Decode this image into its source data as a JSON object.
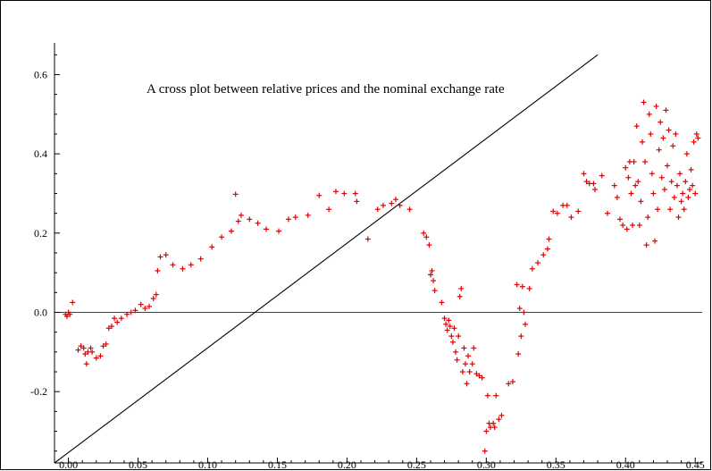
{
  "chart_data": {
    "type": "scatter",
    "title": "A cross plot between relative prices and the nominal exchange rate",
    "xlabel": "",
    "ylabel": "",
    "xlim": [
      -0.01,
      0.455
    ],
    "ylim": [
      -0.38,
      0.68
    ],
    "x_ticks": [
      0.0,
      0.05,
      0.1,
      0.15,
      0.2,
      0.25,
      0.3,
      0.35,
      0.4,
      0.45
    ],
    "x_tick_labels": [
      "0.00",
      "0.05",
      "0.10",
      "0.15",
      "0.20",
      "0.25",
      "0.30",
      "0.35",
      "0.40",
      "0.45"
    ],
    "y_ticks": [
      -0.2,
      0.0,
      0.2,
      0.4,
      0.6
    ],
    "y_tick_labels": [
      "-0.2",
      "0.0",
      "0.2",
      "0.4",
      "0.6"
    ],
    "grid": false,
    "reference_lines": [
      {
        "kind": "horizontal",
        "y": 0.0
      },
      {
        "kind": "diagonal",
        "from": [
          -0.01,
          -0.38
        ],
        "to": [
          0.38,
          0.65
        ]
      }
    ],
    "marker": "+",
    "marker_color": "#e00000",
    "points": [
      [
        -0.002,
        -0.005
      ],
      [
        -0.001,
        -0.01
      ],
      [
        0.0,
        0.0
      ],
      [
        0.001,
        -0.005
      ],
      [
        0.003,
        0.025
      ],
      [
        0.007,
        -0.095
      ],
      [
        0.009,
        -0.085
      ],
      [
        0.011,
        -0.09
      ],
      [
        0.012,
        -0.105
      ],
      [
        0.013,
        -0.13
      ],
      [
        0.014,
        -0.1
      ],
      [
        0.016,
        -0.09
      ],
      [
        0.017,
        -0.1
      ],
      [
        0.02,
        -0.115
      ],
      [
        0.023,
        -0.11
      ],
      [
        0.025,
        -0.085
      ],
      [
        0.027,
        -0.08
      ],
      [
        0.029,
        -0.04
      ],
      [
        0.031,
        -0.035
      ],
      [
        0.033,
        -0.015
      ],
      [
        0.035,
        -0.025
      ],
      [
        0.038,
        -0.015
      ],
      [
        0.042,
        -0.005
      ],
      [
        0.045,
        0.0
      ],
      [
        0.048,
        0.005
      ],
      [
        0.052,
        0.02
      ],
      [
        0.055,
        0.01
      ],
      [
        0.058,
        0.015
      ],
      [
        0.061,
        0.035
      ],
      [
        0.063,
        0.045
      ],
      [
        0.064,
        0.105
      ],
      [
        0.066,
        0.14
      ],
      [
        0.07,
        0.145
      ],
      [
        0.075,
        0.12
      ],
      [
        0.082,
        0.11
      ],
      [
        0.088,
        0.12
      ],
      [
        0.095,
        0.135
      ],
      [
        0.103,
        0.165
      ],
      [
        0.11,
        0.19
      ],
      [
        0.117,
        0.205
      ],
      [
        0.12,
        0.298
      ],
      [
        0.122,
        0.23
      ],
      [
        0.124,
        0.245
      ],
      [
        0.13,
        0.235
      ],
      [
        0.136,
        0.225
      ],
      [
        0.142,
        0.21
      ],
      [
        0.151,
        0.205
      ],
      [
        0.158,
        0.235
      ],
      [
        0.163,
        0.24
      ],
      [
        0.172,
        0.245
      ],
      [
        0.18,
        0.295
      ],
      [
        0.187,
        0.26
      ],
      [
        0.192,
        0.305
      ],
      [
        0.198,
        0.3
      ],
      [
        0.206,
        0.3
      ],
      [
        0.207,
        0.28
      ],
      [
        0.215,
        0.185
      ],
      [
        0.222,
        0.26
      ],
      [
        0.226,
        0.27
      ],
      [
        0.232,
        0.275
      ],
      [
        0.235,
        0.285
      ],
      [
        0.238,
        0.27
      ],
      [
        0.245,
        0.26
      ],
      [
        0.255,
        0.2
      ],
      [
        0.257,
        0.19
      ],
      [
        0.259,
        0.17
      ],
      [
        0.26,
        0.095
      ],
      [
        0.261,
        0.105
      ],
      [
        0.262,
        0.08
      ],
      [
        0.263,
        0.055
      ],
      [
        0.268,
        0.025
      ],
      [
        0.27,
        -0.015
      ],
      [
        0.271,
        -0.03
      ],
      [
        0.272,
        -0.045
      ],
      [
        0.273,
        -0.02
      ],
      [
        0.274,
        -0.035
      ],
      [
        0.275,
        -0.06
      ],
      [
        0.276,
        -0.075
      ],
      [
        0.277,
        -0.04
      ],
      [
        0.278,
        -0.1
      ],
      [
        0.279,
        -0.12
      ],
      [
        0.28,
        -0.06
      ],
      [
        0.281,
        0.04
      ],
      [
        0.282,
        0.06
      ],
      [
        0.283,
        -0.15
      ],
      [
        0.284,
        -0.09
      ],
      [
        0.285,
        -0.13
      ],
      [
        0.286,
        -0.18
      ],
      [
        0.287,
        -0.11
      ],
      [
        0.288,
        -0.15
      ],
      [
        0.29,
        -0.13
      ],
      [
        0.291,
        -0.09
      ],
      [
        0.293,
        -0.155
      ],
      [
        0.295,
        -0.16
      ],
      [
        0.297,
        -0.165
      ],
      [
        0.299,
        -0.35
      ],
      [
        0.3,
        -0.3
      ],
      [
        0.301,
        -0.21
      ],
      [
        0.302,
        -0.28
      ],
      [
        0.303,
        -0.29
      ],
      [
        0.305,
        -0.28
      ],
      [
        0.306,
        -0.29
      ],
      [
        0.307,
        -0.21
      ],
      [
        0.309,
        -0.27
      ],
      [
        0.311,
        -0.26
      ],
      [
        0.316,
        -0.18
      ],
      [
        0.319,
        -0.175
      ],
      [
        0.322,
        0.07
      ],
      [
        0.323,
        -0.105
      ],
      [
        0.324,
        0.01
      ],
      [
        0.325,
        -0.06
      ],
      [
        0.326,
        0.065
      ],
      [
        0.327,
        0.0
      ],
      [
        0.328,
        -0.03
      ],
      [
        0.331,
        0.06
      ],
      [
        0.333,
        0.11
      ],
      [
        0.337,
        0.125
      ],
      [
        0.341,
        0.145
      ],
      [
        0.344,
        0.16
      ],
      [
        0.345,
        0.185
      ],
      [
        0.348,
        0.255
      ],
      [
        0.351,
        0.25
      ],
      [
        0.355,
        0.27
      ],
      [
        0.358,
        0.27
      ],
      [
        0.361,
        0.24
      ],
      [
        0.366,
        0.255
      ],
      [
        0.37,
        0.35
      ],
      [
        0.372,
        0.33
      ],
      [
        0.374,
        0.325
      ],
      [
        0.377,
        0.325
      ],
      [
        0.378,
        0.31
      ],
      [
        0.383,
        0.345
      ],
      [
        0.387,
        0.25
      ],
      [
        0.392,
        0.32
      ],
      [
        0.394,
        0.29
      ],
      [
        0.396,
        0.235
      ],
      [
        0.398,
        0.22
      ],
      [
        0.4,
        0.365
      ],
      [
        0.401,
        0.21
      ],
      [
        0.402,
        0.34
      ],
      [
        0.403,
        0.38
      ],
      [
        0.404,
        0.3
      ],
      [
        0.405,
        0.22
      ],
      [
        0.406,
        0.38
      ],
      [
        0.407,
        0.32
      ],
      [
        0.408,
        0.47
      ],
      [
        0.409,
        0.33
      ],
      [
        0.41,
        0.22
      ],
      [
        0.411,
        0.28
      ],
      [
        0.412,
        0.43
      ],
      [
        0.413,
        0.53
      ],
      [
        0.414,
        0.38
      ],
      [
        0.415,
        0.17
      ],
      [
        0.416,
        0.24
      ],
      [
        0.417,
        0.5
      ],
      [
        0.418,
        0.45
      ],
      [
        0.419,
        0.35
      ],
      [
        0.42,
        0.3
      ],
      [
        0.421,
        0.18
      ],
      [
        0.422,
        0.52
      ],
      [
        0.423,
        0.26
      ],
      [
        0.424,
        0.41
      ],
      [
        0.425,
        0.48
      ],
      [
        0.426,
        0.34
      ],
      [
        0.427,
        0.44
      ],
      [
        0.428,
        0.31
      ],
      [
        0.429,
        0.51
      ],
      [
        0.43,
        0.37
      ],
      [
        0.431,
        0.46
      ],
      [
        0.432,
        0.26
      ],
      [
        0.433,
        0.33
      ],
      [
        0.434,
        0.42
      ],
      [
        0.435,
        0.29
      ],
      [
        0.436,
        0.45
      ],
      [
        0.437,
        0.32
      ],
      [
        0.438,
        0.24
      ],
      [
        0.439,
        0.35
      ],
      [
        0.44,
        0.28
      ],
      [
        0.441,
        0.3
      ],
      [
        0.442,
        0.26
      ],
      [
        0.443,
        0.33
      ],
      [
        0.444,
        0.4
      ],
      [
        0.445,
        0.29
      ],
      [
        0.446,
        0.31
      ],
      [
        0.447,
        0.36
      ],
      [
        0.448,
        0.32
      ],
      [
        0.449,
        0.43
      ],
      [
        0.45,
        0.3
      ],
      [
        0.451,
        0.45
      ],
      [
        0.452,
        0.44
      ]
    ]
  }
}
